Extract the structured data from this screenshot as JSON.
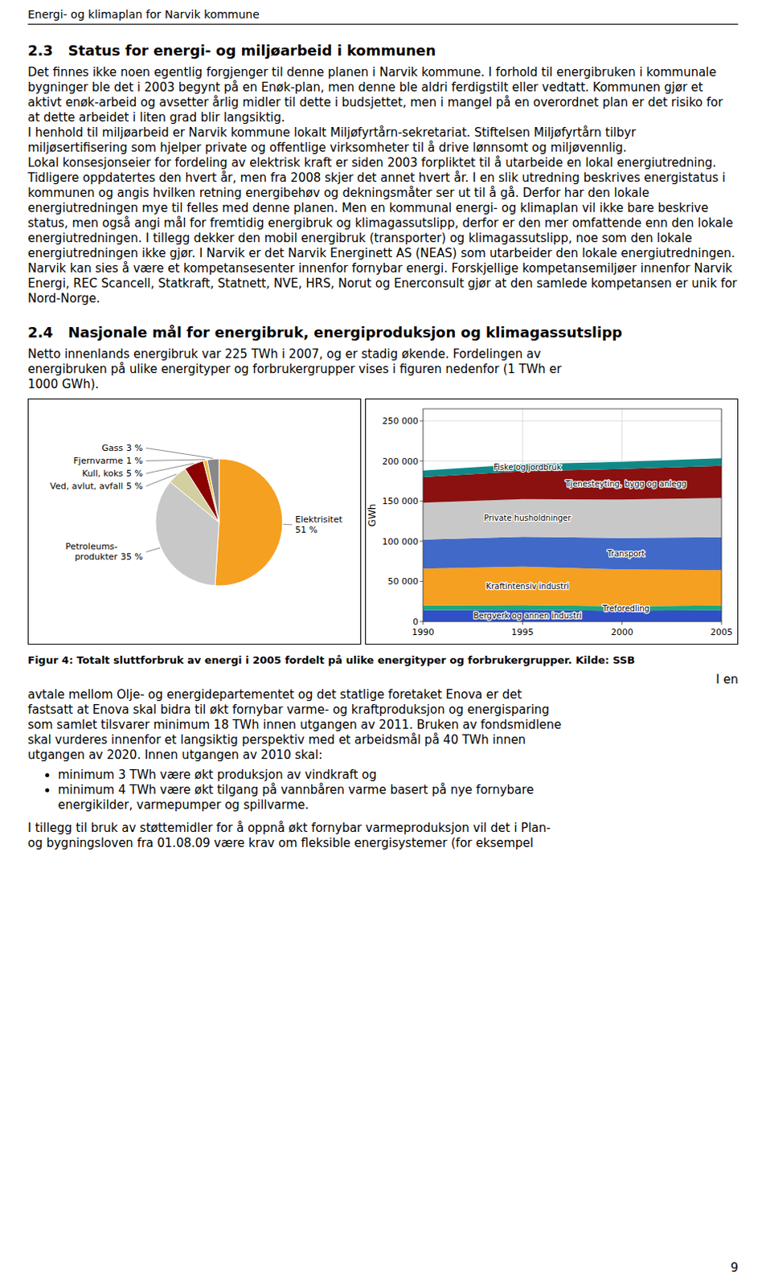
{
  "chart_data": [
    {
      "type": "pie",
      "categories": [
        "Elektrisitet",
        "Petroleums-\nprodukter",
        "Ved, avlut, avfall",
        "Kull, koks",
        "Fjernvarme",
        "Gass"
      ],
      "values": [
        51,
        35,
        5,
        5,
        1,
        3
      ],
      "value_labels": [
        "51 %",
        "35 %",
        "5 %",
        "5 %",
        "1 %",
        "3 %"
      ],
      "colors": [
        "#f5a020",
        "#c8c8c8",
        "#d4cfa0",
        "#8b0000",
        "#e8b840",
        "#888888"
      ]
    },
    {
      "type": "area",
      "stacked": true,
      "x": [
        1990,
        1995,
        2000,
        2005
      ],
      "xlim": [
        1990,
        2005
      ],
      "xticks": [
        1990,
        1995,
        2000,
        2005
      ],
      "ylim": [
        0,
        265000
      ],
      "yticks": [
        0,
        {
          "value": 50000,
          "label": "50 000"
        },
        {
          "value": 100000,
          "label": "100 000"
        },
        {
          "value": 150000,
          "label": "150 000"
        },
        {
          "value": 200000,
          "label": "200 000"
        },
        {
          "value": 250000,
          "label": "250 000"
        }
      ],
      "ylabel": "GWh",
      "grid": true,
      "series": [
        {
          "name": "Bergverk og annen industri",
          "color": "#3050c8",
          "values": [
            14000,
            14500,
            13500,
            14000
          ]
        },
        {
          "name": "Treforedling",
          "color": "#20a878",
          "values": [
            6000,
            6000,
            5500,
            6000
          ]
        },
        {
          "name": "Kraftintensiv industri",
          "color": "#f5a020",
          "values": [
            46000,
            48000,
            46000,
            44000
          ]
        },
        {
          "name": "Transport",
          "color": "#4169c8",
          "values": [
            36000,
            37000,
            39000,
            41000
          ]
        },
        {
          "name": "Private husholdninger",
          "color": "#c8c8c8",
          "values": [
            46000,
            47000,
            48000,
            49000
          ]
        },
        {
          "name": "Tjenesteyting, bygg og anlegg",
          "color": "#8b1010",
          "values": [
            32000,
            35000,
            38000,
            40000
          ]
        },
        {
          "name": "Fiske og jordbruk",
          "color": "#108888",
          "values": [
            8000,
            8500,
            9000,
            9500
          ]
        }
      ]
    }
  ],
  "page": {
    "header": "Energi- og klimaplan for Narvik kommune",
    "section_23_title": "2.3   Status for energi- og miljøarbeid i kommunen",
    "section_23_paragraphs": [
      "Det finnes ikke noen egentlig forgjenger til denne planen i Narvik kommune. I forhold til energibruken i kommunale bygninger ble det i 2003 begynt på en Enøk-plan, men denne ble aldri ferdigstilt eller vedtatt. Kommunen gjør et aktivt enøk-arbeid og avsetter årlig midler til dette i budsjettet, men i mangel på en overordnet plan er det risiko for at dette arbeidet i liten grad blir langsiktig.",
      "I henhold til miljøarbeid er Narvik kommune lokalt Miljøfyrtårn-sekretariat. Stiftelsen Miljøfyrtårn tilbyr miljøsertifisering som hjelper private og offentlige virksomheter til å drive lønnsomt og miljøvennlig.",
      "Lokal konsesjonseier for fordeling av elektrisk kraft er siden 2003 forpliktet til å utarbeide en lokal energiutredning. Tidligere oppdatertes den hvert år, men fra 2008 skjer det annet hvert år. I en slik utredning beskrives energistatus i kommunen og angis hvilken retning energibehøv og dekningsmåter ser ut til å gå. Derfor har den lokale energiutredningen mye til felles med denne planen. Men en kommunal energi- og klimaplan vil ikke bare beskrive status, men også angi mål for fremtidig energibruk og klimagassutslipp, derfor er den mer omfattende enn den lokale energiutredningen. I tillegg dekker den mobil energibruk (transporter) og klimagassutslipp, noe som den lokale energiutredningen ikke gjør. I Narvik er det Narvik Energinett AS (NEAS) som utarbeider den lokale energiutredningen.",
      "Narvik kan sies å være et kompetansesenter innenfor fornybar energi. Forskjellige kompetansemiljøer innenfor Narvik Energi, REC Scancell, Statkraft, Statnett, NVE, HRS, Norut og Enerconsult gjør at den samlede kompetansen er unik for Nord-Norge."
    ],
    "section_24_title": "2.4   Nasjonale mål for energibruk, energiproduksjon og klimagassutslipp",
    "section_24_intro_lines": [
      "Netto innenlands energibruk var 225 TWh i 2007, og er stadig økende. Fordelingen av",
      "energibruken på ulike energityper og forbrukergrupper vises i figuren nedenfor (1 TWh er",
      "1000 GWh)."
    ],
    "figure_caption": "Figur 4: Totalt sluttforbruk av energi i 2005 fordelt på ulike energityper og forbrukergrupper. Kilde: SSB",
    "after_fig_ien": "I en",
    "after_fig_lines": [
      "avtale mellom Olje- og energidepartementet og det statlige foretaket Enova er det",
      "fastsatt at Enova skal bidra til økt fornybar varme- og kraftproduksjon og energisparing",
      "som samlet tilsvarer minimum 18 TWh innen utgangen av 2011. Bruken av fondsmidlene",
      "skal vurderes innenfor et langsiktig perspektiv med et arbeidsmål på 40 TWh innen",
      "utgangen av 2020. Innen utgangen av 2010 skal:"
    ],
    "bullet1": "minimum 3 TWh være økt produksjon av vindkraft og",
    "bullet2_lines": [
      "minimum 4 TWh være økt tilgang på vannbåren varme basert på nye fornybare",
      "energikilder, varmepumper og spillvarme."
    ],
    "last_lines": [
      "I tillegg til bruk av støttemidler for å oppnå økt fornybar varmeproduksjon vil det i Plan-",
      "og bygningsloven fra 01.08.09 være krav om fleksible energisystemer (for eksempel"
    ],
    "page_number": "9"
  }
}
